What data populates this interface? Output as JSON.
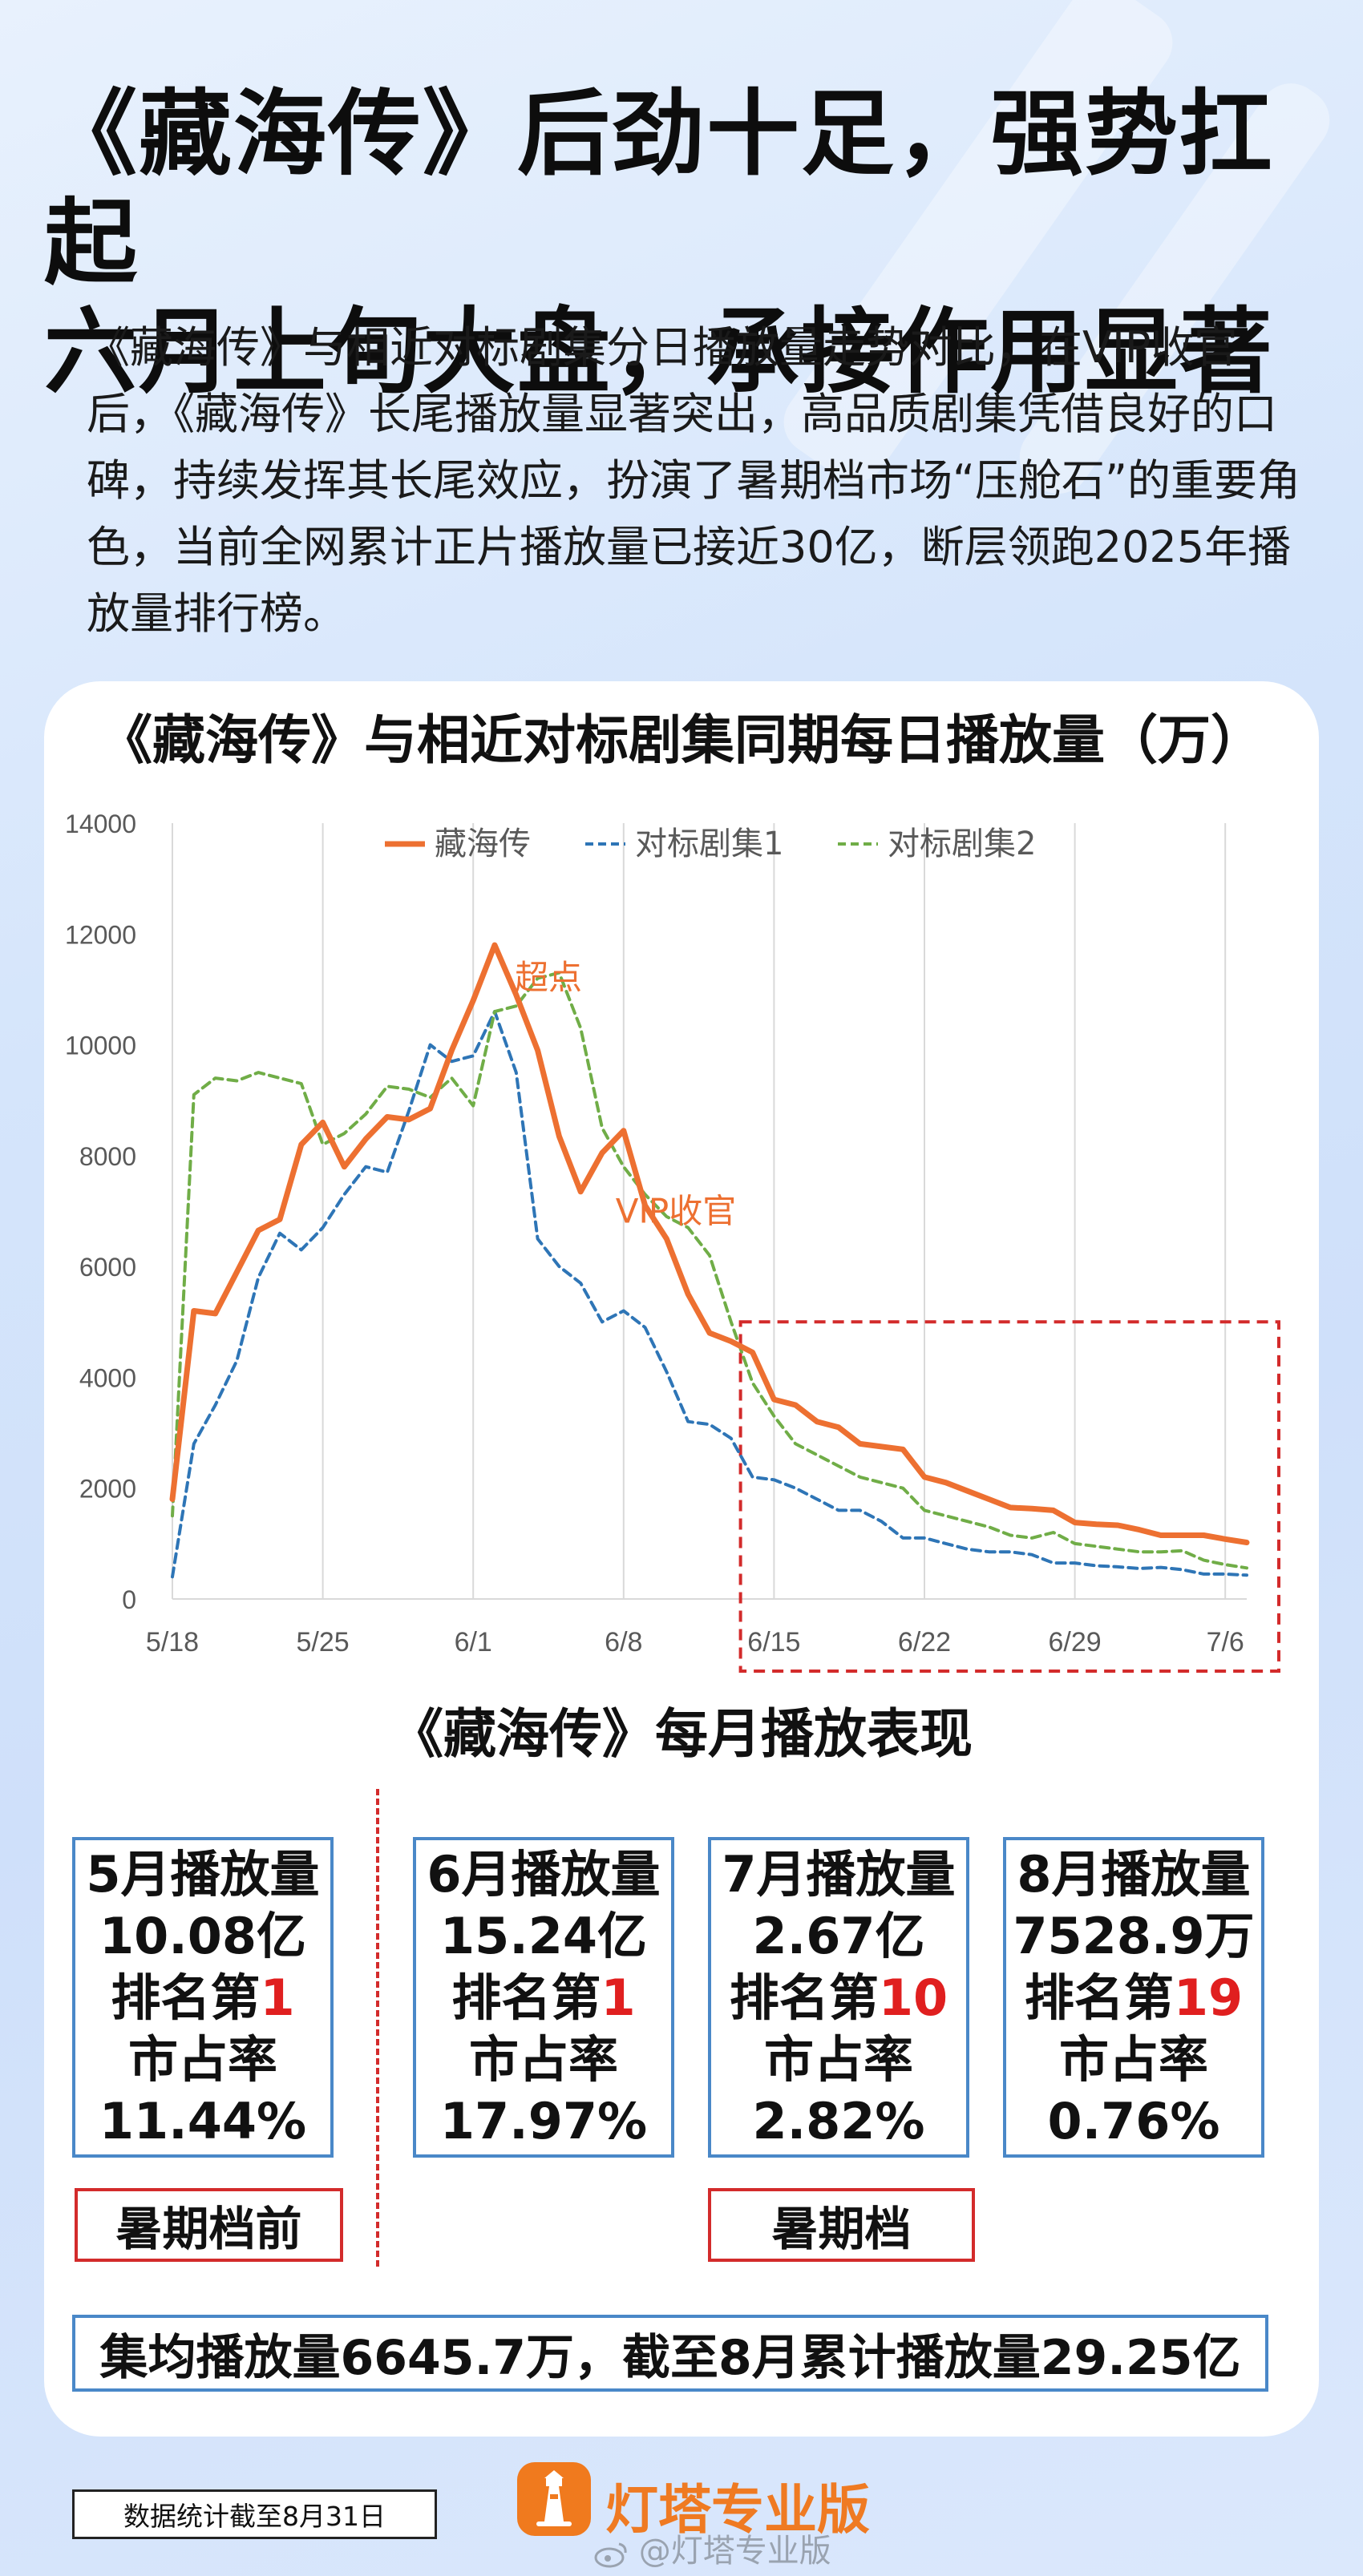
{
  "headline": {
    "line1": "《藏海传》后劲十足，强势扛起",
    "line2": "六月上旬大盘，承接作用显著"
  },
  "intro": "《藏海传》与相近对标剧集分日播放量走势对比，在VIP收官后，《藏海传》长尾播放量显著突出，高品质剧集凭借良好的口碑，持续发挥其长尾效应，扮演了暑期档市场“压舱石”的重要角色，当前全网累计正片播放量已接近30亿，断层领跑2025年播放量排行榜。",
  "chart_title": "《藏海传》与相近对标剧集同期每日播放量（万）",
  "chart_data": {
    "type": "line",
    "title": "《藏海传》与相近对标剧集同期每日播放量（万）",
    "x_tick_labels": [
      "5/18",
      "5/25",
      "6/1",
      "6/8",
      "6/15",
      "6/22",
      "6/29",
      "7/6"
    ],
    "ylim": [
      0,
      14000
    ],
    "y_ticks": [
      0,
      2000,
      4000,
      6000,
      8000,
      10000,
      12000,
      14000
    ],
    "grid": "vertical",
    "legend_position": "top",
    "series": [
      {
        "name": "藏海传",
        "color": "#ed7031",
        "dash": "solid",
        "values": [
          1800,
          5200,
          5150,
          5900,
          6650,
          6850,
          8200,
          8600,
          7800,
          8300,
          8700,
          8650,
          8850,
          9900,
          10800,
          11800,
          10900,
          9900,
          8350,
          7350,
          8050,
          8450,
          7100,
          6500,
          5500,
          4800,
          4650,
          4450,
          3600,
          3500,
          3200,
          3100,
          2800,
          2750,
          2700,
          2200,
          2100,
          1950,
          1800,
          1650,
          1630,
          1600,
          1380,
          1350,
          1330,
          1250,
          1150,
          1150,
          1150,
          1080,
          1020
        ]
      },
      {
        "name": "对标剧集1",
        "color": "#2e75b6",
        "dash": "dashed",
        "values": [
          400,
          2800,
          3500,
          4300,
          5800,
          6600,
          6300,
          6700,
          7300,
          7800,
          7700,
          8800,
          10000,
          9700,
          9800,
          10600,
          9500,
          6500,
          6000,
          5700,
          5000,
          5200,
          4900,
          4100,
          3200,
          3150,
          2900,
          2200,
          2150,
          2000,
          1800,
          1600,
          1600,
          1400,
          1100,
          1100,
          1000,
          900,
          850,
          850,
          800,
          650,
          650,
          600,
          580,
          550,
          570,
          530,
          450,
          450,
          430
        ]
      },
      {
        "name": "对标剧集2",
        "color": "#70ad47",
        "dash": "dashed",
        "values": [
          1500,
          9100,
          9400,
          9350,
          9500,
          9400,
          9300,
          8200,
          8400,
          8750,
          9250,
          9200,
          9050,
          9400,
          8900,
          10600,
          10700,
          11200,
          11300,
          10300,
          8500,
          7800,
          7300,
          6900,
          6700,
          6200,
          5000,
          3900,
          3300,
          2800,
          2600,
          2400,
          2200,
          2100,
          2000,
          1600,
          1500,
          1400,
          1300,
          1150,
          1100,
          1200,
          1000,
          950,
          900,
          850,
          850,
          870,
          700,
          620,
          560
        ]
      }
    ],
    "annotations": [
      {
        "text": "超点",
        "color": "#ed7031"
      },
      {
        "text": "VIP收官",
        "color": "#ed7031"
      }
    ],
    "highlight_region": {
      "from_index": 27,
      "to_index": 50,
      "color": "#d32b2b",
      "style": "dashed"
    }
  },
  "monthly": {
    "title": "《藏海传》每月播放表现",
    "rank_prefix": "排名第",
    "share_label": "市占率",
    "months": [
      {
        "label": "5月播放量",
        "plays": "10.08亿",
        "rank": "1",
        "share": "11.44%"
      },
      {
        "label": "6月播放量",
        "plays": "15.24亿",
        "rank": "1",
        "share": "17.97%"
      },
      {
        "label": "7月播放量",
        "plays": "2.67亿",
        "rank": "10",
        "share": "2.82%"
      },
      {
        "label": "8月播放量",
        "plays": "7528.9万",
        "rank": "19",
        "share": "0.76%"
      }
    ],
    "tag_before": "暑期档前",
    "tag_summer": "暑期档",
    "summary": "集均播放量6645.7万，截至8月累计播放量29.25亿"
  },
  "footer": {
    "note": "数据统计截至8月31日",
    "brand": "灯塔专业版",
    "watermark": "@灯塔专业版"
  },
  "colors": {
    "accent": "#ed7031",
    "box_border": "#4a88c8",
    "highlight_red": "#d32b2b",
    "rank_red": "#e01f1f"
  }
}
